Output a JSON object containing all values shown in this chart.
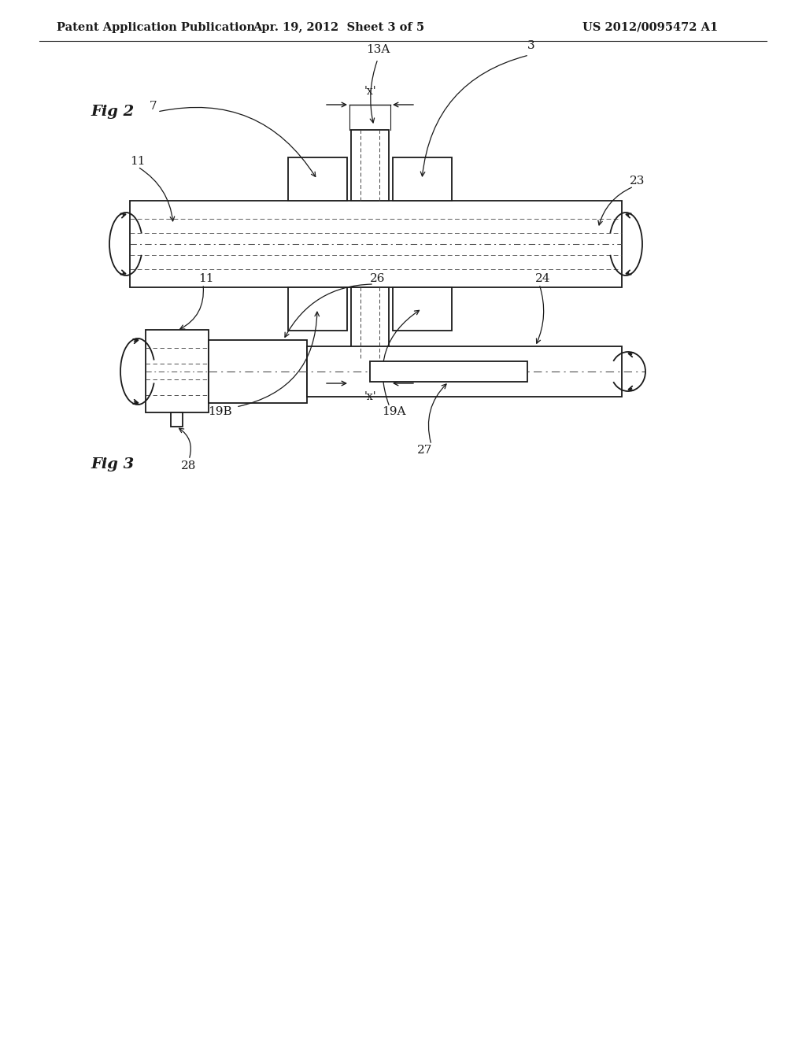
{
  "background_color": "#ffffff",
  "header_left": "Patent Application Publication",
  "header_center": "Apr. 19, 2012  Sheet 3 of 5",
  "header_right": "US 2012/0095472 A1",
  "header_fontsize": 11,
  "fig2_label": "Fig 2",
  "fig3_label": "Fig 3",
  "line_color": "#1a1a1a",
  "dash_color": "#444444"
}
